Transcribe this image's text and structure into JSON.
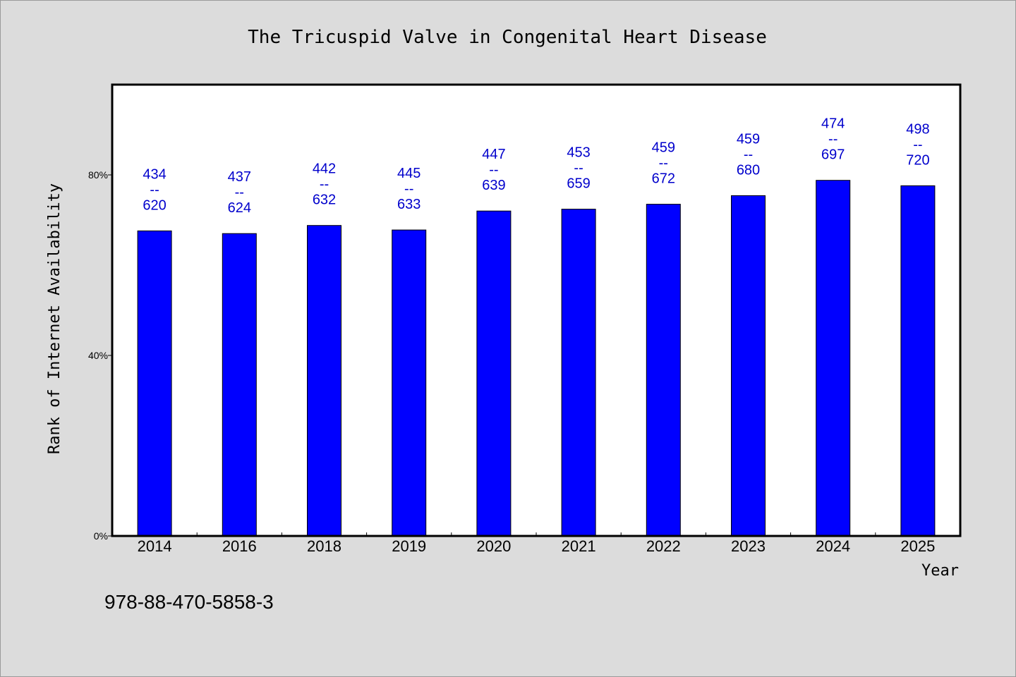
{
  "chart_data": {
    "type": "bar",
    "title": "The Tricuspid Valve in Congenital Heart Disease",
    "xlabel": "Year",
    "ylabel": "Rank of Internet Availability",
    "categories": [
      "2014",
      "2016",
      "2018",
      "2019",
      "2020",
      "2021",
      "2022",
      "2023",
      "2024",
      "2025"
    ],
    "values": [
      67.6,
      67.0,
      68.8,
      67.8,
      72.0,
      72.4,
      73.5,
      75.4,
      78.8,
      77.6
    ],
    "bar_labels": [
      [
        "434",
        "--",
        "620"
      ],
      [
        "437",
        "--",
        "624"
      ],
      [
        "442",
        "--",
        "632"
      ],
      [
        "445",
        "--",
        "633"
      ],
      [
        "447",
        "--",
        "639"
      ],
      [
        "453",
        "--",
        "659"
      ],
      [
        "459",
        "--",
        "672"
      ],
      [
        "459",
        "--",
        "680"
      ],
      [
        "474",
        "--",
        "697"
      ],
      [
        "498",
        "--",
        "720"
      ]
    ],
    "y_ticks": [
      0,
      40,
      80
    ],
    "y_tick_labels": [
      "0%",
      "40%",
      "80%"
    ],
    "ylim": [
      0,
      100
    ],
    "grid": false,
    "legend": "none",
    "colors": {
      "bar": "#0000ff",
      "bar_label": "#0000cc",
      "background": "#dcdcdc",
      "plot_background": "#ffffff"
    }
  },
  "footnote": "978-88-470-5858-3"
}
